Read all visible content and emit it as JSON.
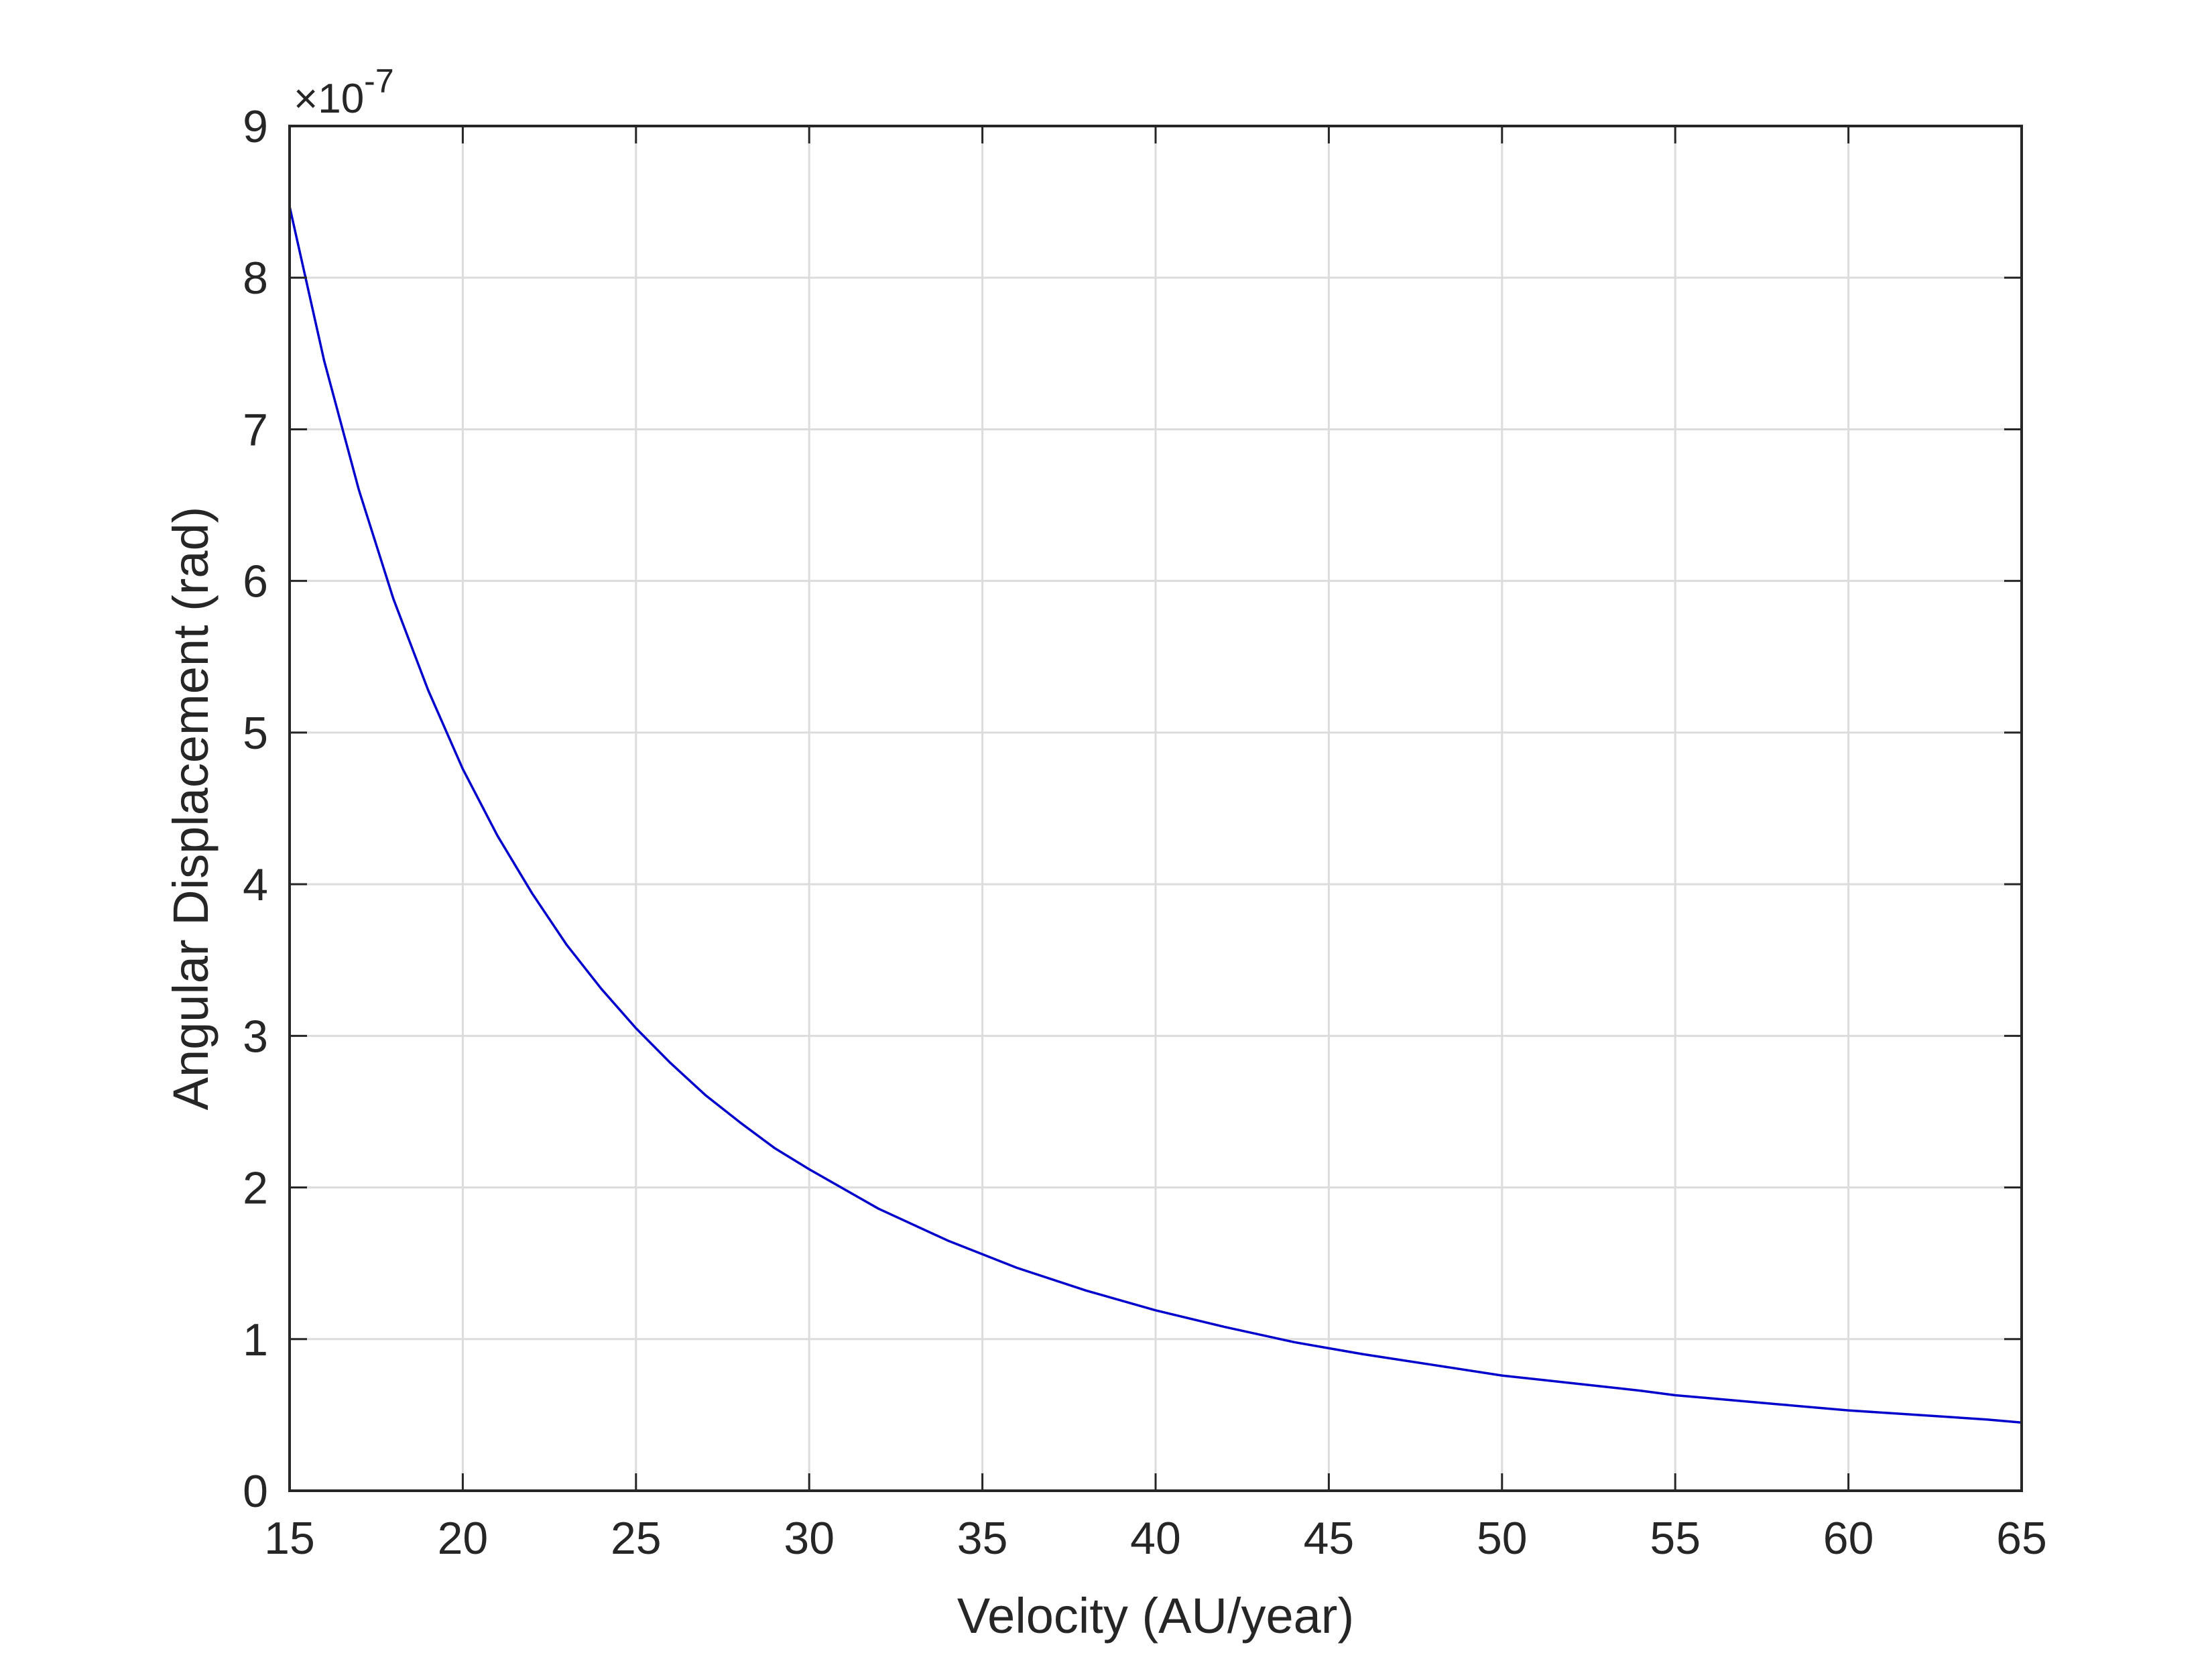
{
  "chart_data": {
    "type": "line",
    "title": "",
    "xlabel": "Velocity (AU/year)",
    "ylabel": "Angular Displacement (rad)",
    "y_multiplier_label": "×10",
    "y_multiplier_exponent": "-7",
    "y_scale_factor": 1e-07,
    "xlim": [
      15,
      65
    ],
    "ylim": [
      0,
      9
    ],
    "xticks": [
      15,
      20,
      25,
      30,
      35,
      40,
      45,
      50,
      55,
      60,
      65
    ],
    "yticks": [
      0,
      1,
      2,
      3,
      4,
      5,
      6,
      7,
      8,
      9
    ],
    "grid": true,
    "legend": "none",
    "series": [
      {
        "color": "#0000cc",
        "x": [
          15,
          16,
          17,
          18,
          19,
          20,
          21,
          22,
          23,
          24,
          25,
          26,
          27,
          28,
          29,
          30,
          32,
          34,
          35,
          36,
          38,
          40,
          42,
          44,
          45,
          46,
          48,
          50,
          52,
          54,
          55,
          56,
          58,
          60,
          62,
          64,
          65
        ],
        "y": [
          8.47,
          7.45,
          6.6,
          5.88,
          5.28,
          4.76,
          4.32,
          3.94,
          3.6,
          3.31,
          3.05,
          2.82,
          2.61,
          2.43,
          2.26,
          2.12,
          1.86,
          1.65,
          1.56,
          1.47,
          1.32,
          1.19,
          1.08,
          0.98,
          0.94,
          0.9,
          0.83,
          0.76,
          0.71,
          0.66,
          0.63,
          0.61,
          0.57,
          0.53,
          0.5,
          0.47,
          0.45
        ]
      }
    ]
  }
}
